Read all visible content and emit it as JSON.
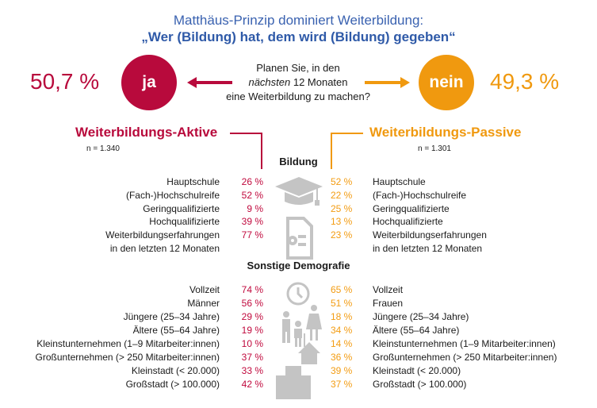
{
  "title": {
    "line1": "Matthäus-Prinzip dominiert Weiterbildung:",
    "line2": "„Wer (Bildung) hat, dem wird (Bildung) gegeben“"
  },
  "question": {
    "line1": "Planen Sie, in den",
    "line2_italic": "nächsten",
    "line2_rest": " 12 Monaten",
    "line3": "eine Weiterbildung zu machen?"
  },
  "yes": {
    "label": "ja",
    "percent": "50,7 %",
    "group": "Weiterbildungs-Aktive",
    "n": "n = 1.340",
    "color": "#b80a3c"
  },
  "no": {
    "label": "nein",
    "percent": "49,3 %",
    "group": "Weiterbildungs-Passive",
    "n": "n = 1.301",
    "color": "#f0990f"
  },
  "sections": {
    "bildung": "Bildung",
    "demografie": "Sonstige Demografie"
  },
  "bildung_rows": [
    {
      "left": "Hauptschule",
      "lp": "26 %",
      "rp": "52 %",
      "right": "Hauptschule"
    },
    {
      "left": "(Fach-)Hochschulreife",
      "lp": "52 %",
      "rp": "22 %",
      "right": "(Fach-)Hochschulreife"
    },
    {
      "left": "Geringqualifizierte",
      "lp": "9 %",
      "rp": "25 %",
      "right": "Geringqualifizierte"
    },
    {
      "left": "Hochqualifizierte",
      "lp": "39 %",
      "rp": "13 %",
      "right": "Hochqualifizierte"
    },
    {
      "left": "Weiterbildungserfahrungen",
      "lp": "77 %",
      "rp": "23 %",
      "right": "Weiterbildungserfahrungen"
    },
    {
      "left": "in den letzten 12 Monaten",
      "lp": "",
      "rp": "",
      "right": "in den letzten 12 Monaten"
    }
  ],
  "demo_rows": [
    {
      "left": "Vollzeit",
      "lp": "74 %",
      "rp": "65 %",
      "right": "Vollzeit"
    },
    {
      "left": "Männer",
      "lp": "56 %",
      "rp": "51 %",
      "right": "Frauen"
    },
    {
      "left": "Jüngere (25–34 Jahre)",
      "lp": "29 %",
      "rp": "18 %",
      "right": "Jüngere (25–34 Jahre)"
    },
    {
      "left": "Ältere (55–64 Jahre)",
      "lp": "19 %",
      "rp": "34 %",
      "right": "Ältere (55–64 Jahre)"
    },
    {
      "left": "Kleinstunternehmen (1–9 Mitarbeiter:innen)",
      "lp": "10 %",
      "rp": "14 %",
      "right": "Kleinstunternehmen (1–9 Mitarbeiter:innen)"
    },
    {
      "left": "Großunternehmen (> 250 Mitarbeiter:innen)",
      "lp": "37 %",
      "rp": "36 %",
      "right": "Großunternehmen (> 250 Mitarbeiter:innen)"
    },
    {
      "left": "Kleinstadt (< 20.000)",
      "lp": "33 %",
      "rp": "39 %",
      "right": "Kleinstadt (< 20.000)"
    },
    {
      "left": "Großstadt (> 100.000)",
      "lp": "42 %",
      "rp": "37 %",
      "right": "Großstadt (> 100.000)"
    }
  ],
  "icons": [
    "graduation-cap",
    "certificate",
    "clock",
    "family",
    "house",
    "office-building"
  ],
  "icon_color": "#c4c4c4"
}
